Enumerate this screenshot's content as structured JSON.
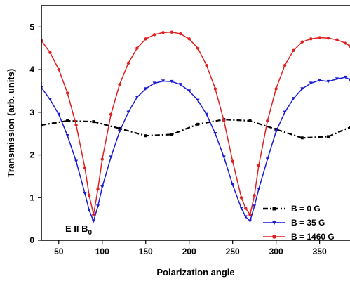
{
  "chart_data": {
    "type": "line",
    "title": "",
    "xlabel": "Polarization angle",
    "ylabel": "Transmission (arb. units)",
    "xlim": [
      30,
      385
    ],
    "ylim": [
      0,
      5.5
    ],
    "xticks": [
      50,
      100,
      150,
      200,
      250,
      300,
      350
    ],
    "yticks": [
      0,
      1,
      2,
      3,
      4,
      5
    ],
    "grid": false,
    "legend_position": "bottom-right",
    "annotation": {
      "text_main": "E II B",
      "text_sub": "0",
      "x": 90,
      "y": 0.15
    },
    "series": [
      {
        "name": "B = 0 G",
        "color": "#000000",
        "marker": "square",
        "style": "dash-dot",
        "x": [
          30,
          60,
          90,
          120,
          150,
          180,
          210,
          240,
          270,
          300,
          330,
          360,
          385
        ],
        "y": [
          2.7,
          2.8,
          2.78,
          2.62,
          2.45,
          2.48,
          2.72,
          2.83,
          2.8,
          2.6,
          2.4,
          2.43,
          2.65
        ]
      },
      {
        "name": "B = 35 G",
        "color": "#1a1ad6",
        "marker": "triangle-down",
        "style": "solid",
        "x": [
          30,
          40,
          50,
          60,
          70,
          80,
          85,
          90,
          95,
          100,
          110,
          120,
          130,
          140,
          150,
          160,
          170,
          180,
          190,
          200,
          210,
          220,
          230,
          240,
          250,
          260,
          265,
          270,
          275,
          280,
          290,
          300,
          310,
          320,
          330,
          340,
          350,
          360,
          370,
          380,
          385
        ],
        "y": [
          3.58,
          3.3,
          2.95,
          2.45,
          1.85,
          1.1,
          0.7,
          0.45,
          0.8,
          1.25,
          1.95,
          2.55,
          3.0,
          3.35,
          3.55,
          3.68,
          3.73,
          3.72,
          3.65,
          3.5,
          3.28,
          2.95,
          2.5,
          1.95,
          1.3,
          0.75,
          0.55,
          0.45,
          0.8,
          1.2,
          1.9,
          2.55,
          3.0,
          3.32,
          3.55,
          3.68,
          3.75,
          3.72,
          3.78,
          3.82,
          3.76
        ]
      },
      {
        "name": "B = 1460 G",
        "color": "#e02020",
        "marker": "circle",
        "style": "solid",
        "x": [
          30,
          40,
          50,
          60,
          70,
          80,
          85,
          90,
          95,
          100,
          110,
          120,
          130,
          140,
          150,
          160,
          170,
          180,
          190,
          200,
          210,
          220,
          230,
          240,
          250,
          260,
          265,
          270,
          275,
          280,
          290,
          300,
          310,
          320,
          330,
          340,
          350,
          360,
          370,
          380,
          385
        ],
        "y": [
          4.68,
          4.4,
          4.0,
          3.45,
          2.7,
          1.7,
          1.05,
          0.6,
          1.2,
          1.9,
          2.95,
          3.65,
          4.15,
          4.5,
          4.72,
          4.82,
          4.87,
          4.88,
          4.84,
          4.72,
          4.5,
          4.1,
          3.55,
          2.8,
          1.85,
          1.0,
          0.75,
          0.6,
          1.05,
          1.75,
          2.8,
          3.55,
          4.1,
          4.45,
          4.65,
          4.72,
          4.75,
          4.74,
          4.7,
          4.62,
          4.55
        ]
      }
    ]
  }
}
